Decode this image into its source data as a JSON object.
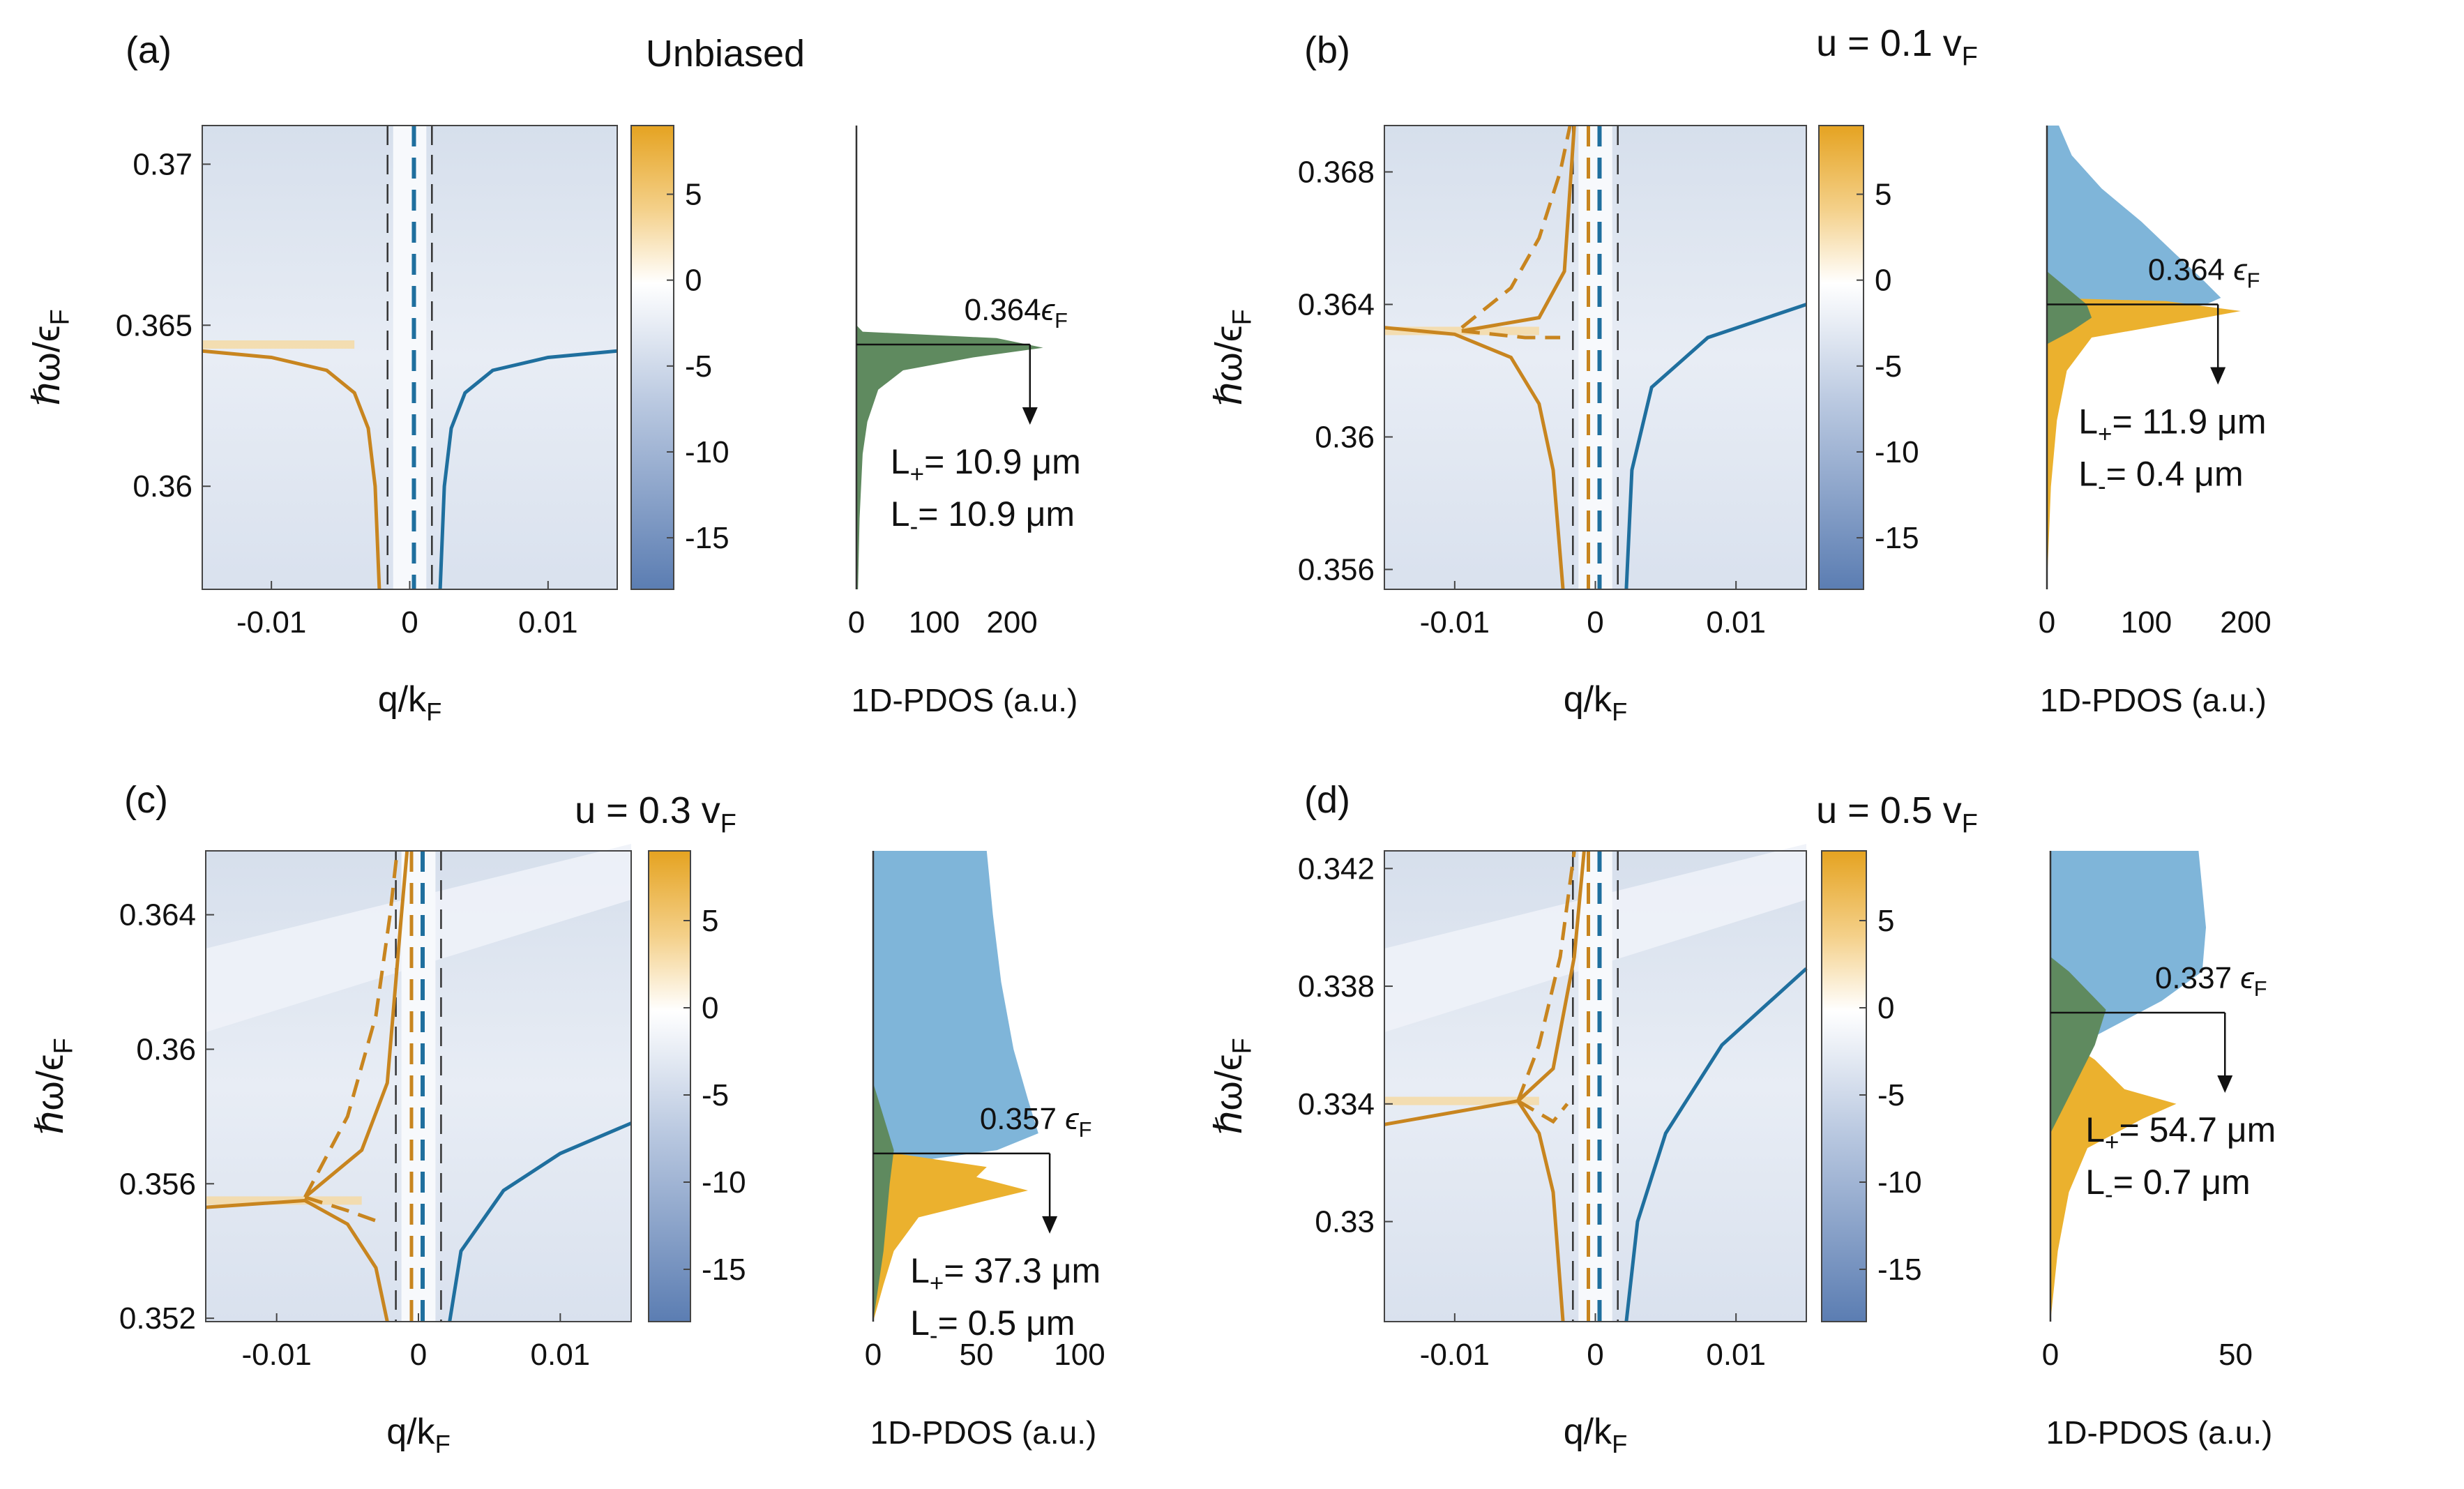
{
  "figure": {
    "colorbar": {
      "ticks": [
        5,
        0,
        -5,
        -10,
        -15
      ],
      "range": [
        -18,
        9
      ]
    },
    "colors": {
      "orange": "#c8851f",
      "blue": "#1f6f9e",
      "pdos_blue": "#7fb5d9",
      "pdos_orange": "#ebb12e",
      "pdos_green": "#5f8a5f"
    }
  },
  "chart_data": [
    {
      "panel_label": "(a)",
      "title": "Unbiased",
      "xlabel": "q/k_F",
      "ylabel": "ħω/ε_F",
      "xlim": [
        -0.015,
        0.015
      ],
      "ylim": [
        0.3568,
        0.3712
      ],
      "xticks": [
        -0.01,
        0,
        0.01
      ],
      "xtick_labels": [
        "-0.01",
        "0",
        "0.01"
      ],
      "yticks": [
        0.36,
        0.365,
        0.37
      ],
      "ytick_labels": [
        "0.36",
        "0.365",
        "0.37"
      ],
      "resonance": 0.3644,
      "orange_solid": [
        [
          -0.015,
          0.3642
        ],
        [
          -0.01,
          0.364
        ],
        [
          -0.006,
          0.3636
        ],
        [
          -0.004,
          0.3629
        ],
        [
          -0.003,
          0.3618
        ],
        [
          -0.0025,
          0.36
        ],
        [
          -0.0022,
          0.3568
        ]
      ],
      "blue_solid": [
        [
          0.0022,
          0.3568
        ],
        [
          0.0025,
          0.36
        ],
        [
          0.003,
          0.3618
        ],
        [
          0.004,
          0.3629
        ],
        [
          0.006,
          0.3636
        ],
        [
          0.01,
          0.364
        ],
        [
          0.015,
          0.3642
        ]
      ],
      "orange_dashed": [],
      "pdos": {
        "xlabel": "1D-PDOS (a.u.)",
        "xlim": [
          0,
          260
        ],
        "xticks": [
          0,
          100,
          200
        ],
        "xtick_labels": [
          "0",
          "100",
          "200"
        ],
        "peak_label": "0.364ϵF",
        "peak_energy": 0.3644,
        "L_plus": "L+= 10.9 μm",
        "L_minus": "L-= 10.9 μm",
        "green_profile": [
          [
            0.3568,
            2
          ],
          [
            0.359,
            4
          ],
          [
            0.361,
            8
          ],
          [
            0.362,
            14
          ],
          [
            0.363,
            28
          ],
          [
            0.3636,
            60
          ],
          [
            0.364,
            150
          ],
          [
            0.3643,
            240
          ],
          [
            0.3646,
            180
          ],
          [
            0.3648,
            8
          ],
          [
            0.365,
            0
          ]
        ],
        "blue_profile": [],
        "orange_profile": []
      }
    },
    {
      "panel_label": "(b)",
      "title": "u = 0.1 vF",
      "xlabel": "q/k_F",
      "ylabel": "ħω/ε_F",
      "xlim": [
        -0.015,
        0.015
      ],
      "ylim": [
        0.3554,
        0.3694
      ],
      "xticks": [
        -0.01,
        0,
        0.01
      ],
      "xtick_labels": [
        "-0.01",
        "0",
        "0.01"
      ],
      "yticks": [
        0.356,
        0.36,
        0.364,
        0.368
      ],
      "ytick_labels": [
        "0.356",
        "0.36",
        "0.364",
        "0.368"
      ],
      "resonance": 0.3632,
      "orange_solid": [
        [
          -0.015,
          0.3633
        ],
        [
          -0.01,
          0.3631
        ],
        [
          -0.006,
          0.3624
        ],
        [
          -0.004,
          0.361
        ],
        [
          -0.003,
          0.359
        ],
        [
          -0.0023,
          0.3554
        ]
      ],
      "blue_solid": [
        [
          0.0022,
          0.3554
        ],
        [
          0.0026,
          0.359
        ],
        [
          0.004,
          0.3615
        ],
        [
          0.008,
          0.363
        ],
        [
          0.015,
          0.364
        ]
      ],
      "orange_dashed": [
        [
          -0.0095,
          0.3633
        ],
        [
          -0.006,
          0.3645
        ],
        [
          -0.004,
          0.366
        ],
        [
          -0.0025,
          0.368
        ],
        [
          -0.0018,
          0.3694
        ]
      ],
      "orange_lower_dashed": [
        [
          -0.0095,
          0.3632
        ],
        [
          -0.005,
          0.363
        ],
        [
          -0.0025,
          0.363
        ]
      ],
      "orange_inner": [
        [
          -0.0095,
          0.3632
        ],
        [
          -0.004,
          0.3636
        ],
        [
          -0.0022,
          0.365
        ],
        [
          -0.0015,
          0.3694
        ]
      ],
      "pdos": {
        "xlabel": "1D-PDOS (a.u.)",
        "xlim": [
          0,
          200
        ],
        "xticks": [
          0,
          100,
          200
        ],
        "xtick_labels": [
          "0",
          "100",
          "200"
        ],
        "peak_label": "0.364 ϵF",
        "peak_energy": 0.364,
        "L_plus": "L+= 11.9 μm",
        "L_minus": "L-= 0.4 μm",
        "blue_profile": [
          [
            0.3694,
            12
          ],
          [
            0.3685,
            25
          ],
          [
            0.3675,
            55
          ],
          [
            0.3665,
            95
          ],
          [
            0.3655,
            130
          ],
          [
            0.3648,
            155
          ],
          [
            0.3642,
            175
          ],
          [
            0.364,
            160
          ],
          [
            0.363,
            0
          ]
        ],
        "orange_profile": [
          [
            0.3555,
            0
          ],
          [
            0.3585,
            4
          ],
          [
            0.3605,
            10
          ],
          [
            0.362,
            20
          ],
          [
            0.363,
            45
          ],
          [
            0.3635,
            140
          ],
          [
            0.3638,
            195
          ],
          [
            0.3641,
            120
          ],
          [
            0.3642,
            0
          ]
        ],
        "green_profile": [
          [
            0.3628,
            0
          ],
          [
            0.3632,
            25
          ],
          [
            0.3636,
            45
          ],
          [
            0.364,
            40
          ],
          [
            0.3645,
            20
          ],
          [
            0.365,
            0
          ]
        ]
      }
    },
    {
      "panel_label": "(c)",
      "title": "u = 0.3 vF",
      "xlabel": "q/k_F",
      "ylabel": "ħω/ε_F",
      "xlim": [
        -0.015,
        0.015
      ],
      "ylim": [
        0.3519,
        0.3659
      ],
      "xticks": [
        -0.01,
        0,
        0.01
      ],
      "xtick_labels": [
        "-0.01",
        "0",
        "0.01"
      ],
      "yticks": [
        0.352,
        0.356,
        0.36,
        0.364
      ],
      "ytick_labels": [
        "0.352",
        "0.356",
        "0.36",
        "0.364"
      ],
      "resonance": 0.3555,
      "orange_solid": [
        [
          -0.015,
          0.3553
        ],
        [
          -0.008,
          0.3555
        ],
        [
          -0.005,
          0.3548
        ],
        [
          -0.003,
          0.3535
        ],
        [
          -0.0022,
          0.3519
        ]
      ],
      "blue_solid": [
        [
          0.0022,
          0.3519
        ],
        [
          0.003,
          0.354
        ],
        [
          0.006,
          0.3558
        ],
        [
          0.01,
          0.3569
        ],
        [
          0.015,
          0.3578
        ]
      ],
      "orange_dashed": [
        [
          -0.008,
          0.3556
        ],
        [
          -0.005,
          0.358
        ],
        [
          -0.003,
          0.361
        ],
        [
          -0.002,
          0.364
        ],
        [
          -0.0015,
          0.3659
        ]
      ],
      "orange_lower_dashed": [
        [
          -0.008,
          0.3556
        ],
        [
          -0.005,
          0.3552
        ],
        [
          -0.003,
          0.3549
        ]
      ],
      "orange_inner": [
        [
          -0.008,
          0.3556
        ],
        [
          -0.004,
          0.357
        ],
        [
          -0.0022,
          0.359
        ],
        [
          -0.0012,
          0.364
        ],
        [
          -0.0008,
          0.3659
        ]
      ],
      "pdos": {
        "xlabel": "1D-PDOS (a.u.)",
        "xlim": [
          0,
          100
        ],
        "xticks": [
          0,
          50,
          100
        ],
        "xtick_labels": [
          "0",
          "50",
          "100"
        ],
        "peak_label": "0.357 ϵF",
        "peak_energy": 0.3569,
        "L_plus": "L+= 37.3 μm",
        "L_minus": "L-= 0.5 μm",
        "blue_profile": [
          [
            0.3659,
            55
          ],
          [
            0.364,
            58
          ],
          [
            0.362,
            62
          ],
          [
            0.36,
            68
          ],
          [
            0.3585,
            75
          ],
          [
            0.3575,
            80
          ],
          [
            0.357,
            60
          ],
          [
            0.3565,
            0
          ]
        ],
        "orange_profile": [
          [
            0.3519,
            0
          ],
          [
            0.353,
            5
          ],
          [
            0.354,
            10
          ],
          [
            0.355,
            22
          ],
          [
            0.3555,
            55
          ],
          [
            0.3558,
            75
          ],
          [
            0.3562,
            50
          ],
          [
            0.3565,
            55
          ],
          [
            0.357,
            0
          ]
        ],
        "green_profile": [
          [
            0.3519,
            0
          ],
          [
            0.354,
            5
          ],
          [
            0.356,
            8
          ],
          [
            0.357,
            10
          ],
          [
            0.358,
            5
          ],
          [
            0.359,
            0
          ]
        ]
      }
    },
    {
      "panel_label": "(d)",
      "title": "u = 0.5 vF",
      "xlabel": "q/k_F",
      "ylabel": "ħω/ε_F",
      "xlim": [
        -0.015,
        0.015
      ],
      "ylim": [
        0.3266,
        0.3426
      ],
      "xticks": [
        -0.01,
        0,
        0.01
      ],
      "xtick_labels": [
        "-0.01",
        "0",
        "0.01"
      ],
      "yticks": [
        0.33,
        0.334,
        0.338,
        0.342
      ],
      "ytick_labels": [
        "0.33",
        "0.334",
        "0.338",
        "0.342"
      ],
      "resonance": 0.3341,
      "orange_solid": [
        [
          -0.015,
          0.3333
        ],
        [
          -0.0055,
          0.3341
        ],
        [
          -0.004,
          0.333
        ],
        [
          -0.003,
          0.331
        ],
        [
          -0.0023,
          0.3266
        ]
      ],
      "blue_solid": [
        [
          0.0022,
          0.3266
        ],
        [
          0.003,
          0.33
        ],
        [
          0.005,
          0.333
        ],
        [
          0.009,
          0.336
        ],
        [
          0.015,
          0.3386
        ]
      ],
      "orange_dashed": [
        [
          -0.0055,
          0.3341
        ],
        [
          -0.004,
          0.336
        ],
        [
          -0.0025,
          0.339
        ],
        [
          -0.0015,
          0.3426
        ]
      ],
      "orange_lower_dashed": [
        [
          -0.0055,
          0.3341
        ],
        [
          -0.003,
          0.3334
        ],
        [
          -0.002,
          0.334
        ]
      ],
      "orange_inner": [
        [
          -0.0055,
          0.3341
        ],
        [
          -0.003,
          0.3352
        ],
        [
          -0.0015,
          0.339
        ],
        [
          -0.0008,
          0.3426
        ]
      ],
      "pdos": {
        "xlabel": "1D-PDOS (a.u.)",
        "xlim": [
          0,
          55
        ],
        "xticks": [
          0,
          50
        ],
        "xtick_labels": [
          "0",
          "50"
        ],
        "peak_label": "0.337 ϵF",
        "peak_energy": 0.3371,
        "L_plus": "L+= 54.7 μm",
        "L_minus": "L-= 0.7 μm",
        "blue_profile": [
          [
            0.3426,
            40
          ],
          [
            0.34,
            42
          ],
          [
            0.3385,
            41
          ],
          [
            0.3375,
            30
          ],
          [
            0.3365,
            15
          ],
          [
            0.3355,
            0
          ]
        ],
        "orange_profile": [
          [
            0.3266,
            0
          ],
          [
            0.329,
            2
          ],
          [
            0.331,
            5
          ],
          [
            0.3325,
            10
          ],
          [
            0.3335,
            25
          ],
          [
            0.334,
            34
          ],
          [
            0.3345,
            20
          ],
          [
            0.3355,
            12
          ],
          [
            0.3365,
            0
          ]
        ],
        "green_profile": [
          [
            0.333,
            0
          ],
          [
            0.3345,
            6
          ],
          [
            0.336,
            12
          ],
          [
            0.3372,
            15
          ],
          [
            0.3385,
            5
          ],
          [
            0.339,
            0
          ]
        ]
      }
    }
  ]
}
